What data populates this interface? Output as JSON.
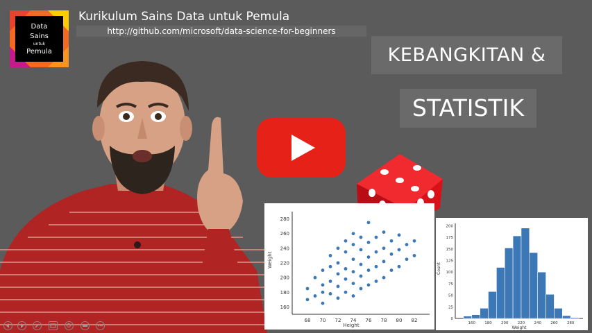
{
  "logo": {
    "line1": "Data",
    "line2": "Sains",
    "line3": "untuk",
    "line4": "Pemula"
  },
  "header": {
    "title": "Kurikulum Sains Data untuk Pemula",
    "url": "http://github.com/microsoft/data-science-for-beginners"
  },
  "slide": {
    "title_line1": "KEBANGKITAN &",
    "title_line2": "STATISTIK"
  },
  "scatter_chart": {
    "ylabel": "Weight",
    "xlabel": "Height",
    "y_ticks": [
      "280",
      "260",
      "240",
      "220",
      "200",
      "180",
      "160"
    ],
    "x_ticks": [
      "68",
      "70",
      "72",
      "74",
      "76",
      "78",
      "80",
      "82"
    ]
  },
  "histogram": {
    "ylabel": "Count",
    "xlabel": "Weight",
    "y_ticks": [
      "200",
      "175",
      "150",
      "125",
      "100",
      "75",
      "50",
      "25",
      "0"
    ],
    "x_ticks": [
      "160",
      "180",
      "200",
      "220",
      "240",
      "260",
      "280"
    ]
  },
  "chart_data": [
    {
      "type": "scatter",
      "xlabel": "Height",
      "ylabel": "Weight",
      "xlim": [
        66,
        84
      ],
      "ylim": [
        150,
        290
      ],
      "x": [
        68,
        68,
        69,
        69,
        70,
        70,
        70,
        70,
        71,
        71,
        71,
        71,
        72,
        72,
        72,
        72,
        72,
        73,
        73,
        73,
        73,
        73,
        74,
        74,
        74,
        74,
        74,
        74,
        75,
        75,
        75,
        75,
        75,
        76,
        76,
        76,
        76,
        76,
        77,
        77,
        77,
        77,
        78,
        78,
        78,
        78,
        79,
        79,
        79,
        80,
        80,
        80,
        81,
        81,
        82,
        82
      ],
      "y": [
        170,
        185,
        175,
        200,
        165,
        190,
        210,
        180,
        178,
        195,
        215,
        230,
        172,
        188,
        205,
        220,
        240,
        180,
        198,
        212,
        235,
        250,
        175,
        192,
        208,
        225,
        245,
        260,
        185,
        202,
        218,
        238,
        255,
        190,
        210,
        228,
        248,
        275,
        195,
        215,
        235,
        255,
        200,
        222,
        240,
        262,
        210,
        232,
        250,
        215,
        238,
        258,
        225,
        245,
        230,
        250
      ],
      "colors": {
        "points": "#3b78b5"
      }
    },
    {
      "type": "bar",
      "xlabel": "Weight",
      "ylabel": "Count",
      "ylim": [
        0,
        205
      ],
      "bins": [
        150,
        160,
        170,
        180,
        190,
        200,
        210,
        220,
        230,
        240,
        250,
        260,
        270,
        280
      ],
      "values": [
        5,
        8,
        22,
        58,
        110,
        152,
        178,
        195,
        142,
        100,
        52,
        22,
        6,
        2
      ],
      "colors": {
        "bars": "#3b78b5"
      }
    }
  ],
  "colors": {
    "background": "#5b5b5b",
    "youtube_red": "#e62117",
    "logo_orange": "#f26a21",
    "dice_red": "#d81218"
  },
  "controls": [
    "previous-icon",
    "next-icon",
    "pen-icon",
    "slides-icon",
    "zoom-icon",
    "subtitles-icon",
    "more-icon"
  ]
}
